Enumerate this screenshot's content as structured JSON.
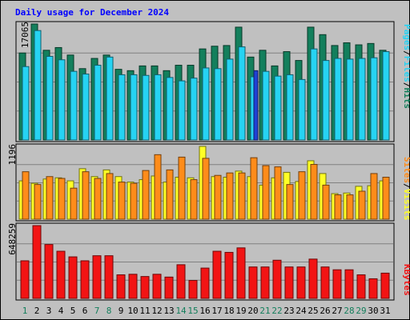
{
  "chart_data": {
    "type": "bar",
    "title": "Daily usage for December 2024",
    "categories": [
      "1",
      "2",
      "3",
      "4",
      "5",
      "6",
      "7",
      "8",
      "9",
      "10",
      "11",
      "12",
      "13",
      "14",
      "15",
      "16",
      "17",
      "18",
      "19",
      "20",
      "21",
      "22",
      "23",
      "24",
      "25",
      "26",
      "27",
      "28",
      "29",
      "30",
      "31"
    ],
    "weekend_days": [
      "1",
      "7",
      "8",
      "14",
      "15",
      "21",
      "22",
      "28",
      "29"
    ],
    "panels": [
      {
        "id": "hits",
        "ymax_label": "17065",
        "ymax": 17065,
        "series": [
          {
            "name": "Hits",
            "color": "#137f5c",
            "values": [
              12800,
              17065,
              13200,
              13600,
              12500,
              10500,
              12000,
              12500,
              10400,
              10200,
              10900,
              10900,
              10200,
              11000,
              11000,
              13400,
              13800,
              13900,
              16600,
              12200,
              13200,
              10900,
              13000,
              11700,
              16600,
              15500,
              13900,
              14300,
              14000,
              14200,
              13200
            ]
          },
          {
            "name": "Files",
            "color": "#26d3f3",
            "values": [
              10800,
              16100,
              12300,
              11800,
              10100,
              9700,
              11000,
              12200,
              9600,
              9600,
              9500,
              9600,
              9200,
              8700,
              9100,
              10600,
              10500,
              11900,
              13700,
              9300,
              10100,
              9400,
              9600,
              8900,
              13400,
              11700,
              12000,
              11900,
              12000,
              12100,
              13000
            ]
          },
          {
            "name": "Pages",
            "color": "#2041d6",
            "values": [
              0,
              0,
              0,
              0,
              0,
              0,
              0,
              0,
              0,
              0,
              0,
              0,
              0,
              0,
              0,
              0,
              0,
              0,
              0,
              10200,
              0,
              0,
              0,
              0,
              0,
              0,
              0,
              0,
              0,
              0,
              0
            ]
          }
        ],
        "legend": [
          "Pages",
          "Files",
          "Hits"
        ]
      },
      {
        "id": "visits",
        "ymax_label": "1196",
        "ymax": 1196,
        "series": [
          {
            "name": "Visits",
            "color": "#ffff26",
            "values": [
              630,
              590,
              660,
              680,
              630,
              830,
              700,
              810,
              700,
              610,
              650,
              710,
              610,
              690,
              680,
              1196,
              700,
              690,
              790,
              700,
              560,
              680,
              770,
              620,
              960,
              750,
              420,
              430,
              540,
              550,
              630
            ]
          },
          {
            "name": "Sites",
            "color": "#ff8c1a",
            "values": [
              780,
              570,
              700,
              670,
              510,
              780,
              670,
              750,
              610,
              590,
              800,
              1060,
              810,
              1020,
              650,
              1000,
              720,
              760,
              760,
              1010,
              880,
              860,
              570,
              780,
              900,
              560,
              400,
              400,
              460,
              750,
              690
            ]
          }
        ],
        "legend": [
          "Sites",
          "Visits"
        ]
      },
      {
        "id": "kbytes",
        "ymax_label": "648259",
        "ymax": 648259,
        "series": [
          {
            "name": "KBytes",
            "color": "#f21414",
            "values": [
              335000,
              648259,
              480000,
              420000,
              370000,
              335000,
              380000,
              380000,
              210000,
              215000,
              195000,
              215000,
              190000,
              300000,
              160000,
              270000,
              420000,
              410000,
              450000,
              280000,
              280000,
              340000,
              280000,
              280000,
              350000,
              280000,
              255000,
              255000,
              210000,
              175000,
              225000
            ]
          }
        ],
        "legend": [
          "KBytes"
        ]
      }
    ]
  }
}
